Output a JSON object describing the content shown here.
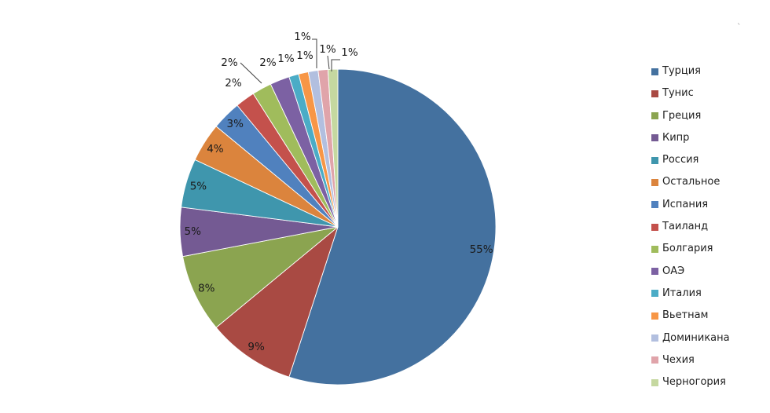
{
  "chart_data": {
    "type": "pie",
    "title": "",
    "legend_position": "right",
    "start_angle_deg": 0,
    "direction": "clockwise",
    "unit": "%",
    "categories": [
      "Турция",
      "Тунис",
      "Греция",
      "Кипр",
      "Россия",
      "Остальное",
      "Испания",
      "Таиланд",
      "Болгария",
      "ОАЭ",
      "Италия",
      "Вьетнам",
      "Доминикана",
      "Чехия",
      "Черногория"
    ],
    "values": [
      55,
      9,
      8,
      5,
      5,
      4,
      3,
      2,
      2,
      2,
      1,
      1,
      1,
      1,
      1
    ],
    "data_labels": [
      "55%",
      "9%",
      "8%",
      "5%",
      "5%",
      "4%",
      "3%",
      "2%",
      "2%",
      "2%",
      "1%",
      "1%",
      "1%",
      "1%",
      "1%"
    ],
    "colors": [
      "#44719F",
      "#A94A43",
      "#8BA450",
      "#745A93",
      "#3F96AD",
      "#DB843D",
      "#5081BE",
      "#C4514C",
      "#A0BC5C",
      "#7C61A3",
      "#4BACC6",
      "#F79646",
      "#B2BFDF",
      "#E0A4AA",
      "#C5D8A0"
    ]
  },
  "stray_mark": "`"
}
